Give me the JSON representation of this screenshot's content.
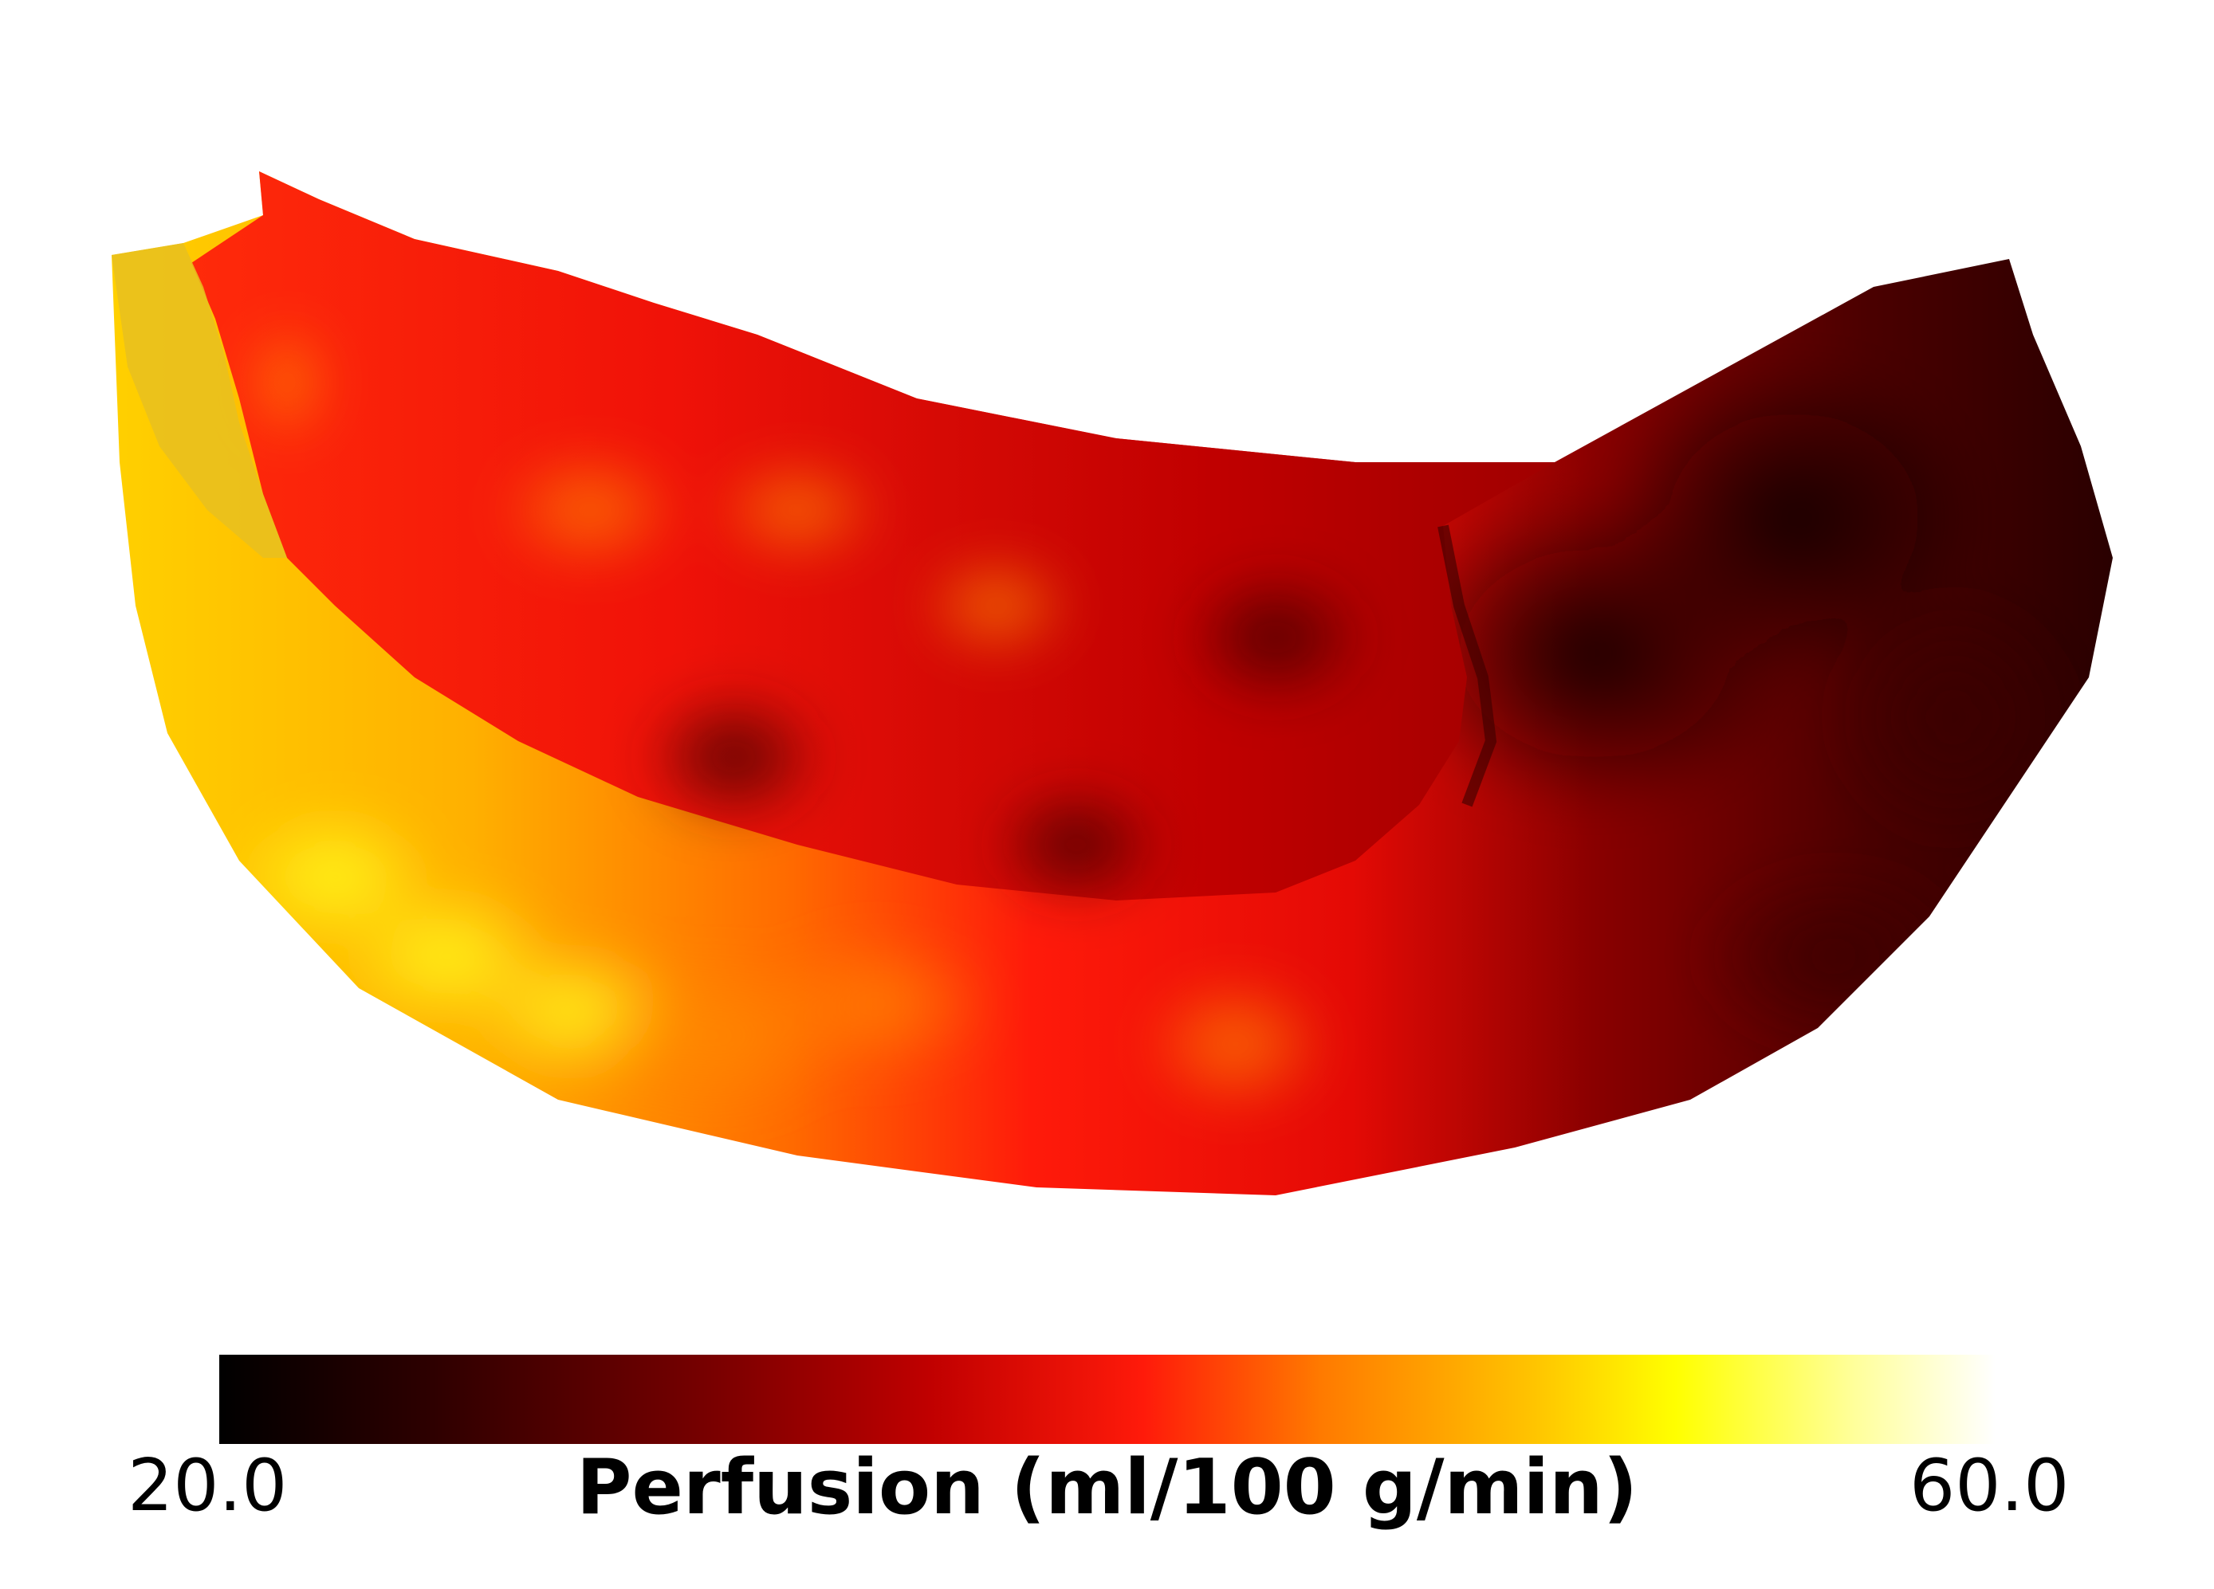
{
  "figure": {
    "type": "3d-surface-perfusion-map",
    "colormap": {
      "name": "hot",
      "stops": [
        "#000000",
        "#3a0000",
        "#7a0000",
        "#c00000",
        "#ff1a0a",
        "#ff7a00",
        "#ffc400",
        "#ffff00",
        "#ffff9a",
        "#ffffff"
      ]
    },
    "colorbar": {
      "min_label": "20.0",
      "max_label": "60.0",
      "title": "Perfusion (ml/100 g/min)",
      "min": 20.0,
      "max": 60.0,
      "orientation": "horizontal"
    }
  }
}
